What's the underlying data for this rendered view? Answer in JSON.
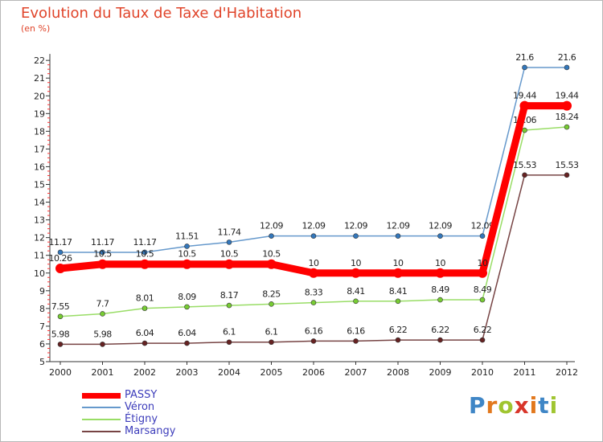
{
  "page": {
    "title": "Evolution du Taux de Taxe d'Habitation",
    "unit_label": "(en %)"
  },
  "logo": {
    "text": "Proxiti",
    "letters": [
      "P",
      "r",
      "o",
      "x",
      "i",
      "t",
      "i"
    ],
    "letter_colors": [
      "#3f86c6",
      "#e2781d",
      "#a0c530",
      "#d8352a",
      "#e2781d",
      "#3f86c6",
      "#a0c530"
    ]
  },
  "chart_data": {
    "type": "line",
    "title": "Evolution du Taux de Taxe d'Habitation",
    "subtitle": "(en %)",
    "xlabel": "",
    "ylabel": "",
    "ylim": [
      5,
      22
    ],
    "yticks": [
      5,
      6,
      7,
      8,
      9,
      10,
      11,
      12,
      13,
      14,
      15,
      16,
      17,
      18,
      19,
      20,
      21,
      22
    ],
    "grid": false,
    "legend_position": "bottom-left",
    "categories": [
      "2000",
      "2001",
      "2002",
      "2003",
      "2004",
      "2005",
      "2006",
      "2007",
      "2008",
      "2009",
      "2010",
      "2011",
      "2012"
    ],
    "series": [
      {
        "name": "PASSY",
        "color": "#ff0000",
        "values": [
          10.26,
          10.5,
          10.5,
          10.5,
          10.5,
          10.5,
          10,
          10,
          10,
          10,
          10,
          19.44,
          19.44
        ],
        "labels": [
          "10.26",
          "10.5",
          "10.5",
          "10.5",
          "10.5",
          "10.5",
          "10",
          "10",
          "10",
          "10",
          "10",
          "19.44",
          "19.44"
        ]
      },
      {
        "name": "Véron",
        "color": "#6699cc",
        "marker_color": "#3377bb",
        "values": [
          11.17,
          11.17,
          11.17,
          11.51,
          11.74,
          12.09,
          12.09,
          12.09,
          12.09,
          12.09,
          12.09,
          21.6,
          21.6
        ],
        "labels": [
          "11.17",
          "11.17",
          "11.17",
          "11.51",
          "11.74",
          "12.09",
          "12.09",
          "12.09",
          "12.09",
          "12.09",
          "12.09",
          "21.6",
          "21.6"
        ]
      },
      {
        "name": "Étigny",
        "color": "#99dd66",
        "marker_color": "#77cc33",
        "values": [
          7.55,
          7.7,
          8.01,
          8.09,
          8.17,
          8.25,
          8.33,
          8.41,
          8.41,
          8.49,
          8.49,
          18.06,
          18.24
        ],
        "labels": [
          "7.55",
          "7.7",
          "8.01",
          "8.09",
          "8.17",
          "8.25",
          "8.33",
          "8.41",
          "8.41",
          "8.49",
          "8.49",
          "18.06",
          "18.24"
        ]
      },
      {
        "name": "Marsangy",
        "color": "#774444",
        "marker_color": "#662222",
        "values": [
          5.98,
          5.98,
          6.04,
          6.04,
          6.1,
          6.1,
          6.16,
          6.16,
          6.22,
          6.22,
          6.22,
          15.53,
          15.53
        ],
        "labels": [
          "5.98",
          "5.98",
          "6.04",
          "6.04",
          "6.1",
          "6.1",
          "6.16",
          "6.16",
          "6.22",
          "6.22",
          "6.22",
          "15.53",
          "15.53"
        ]
      }
    ]
  }
}
